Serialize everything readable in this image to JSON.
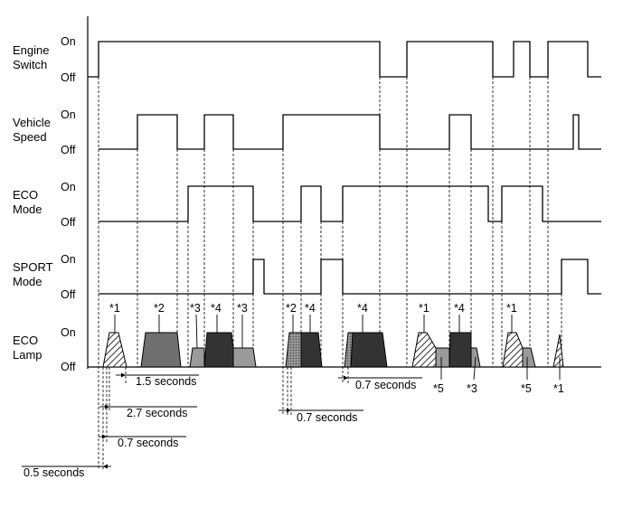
{
  "diagram": {
    "rows": [
      {
        "name": "Engine Switch",
        "lines": [
          "Engine",
          "Switch"
        ],
        "on": "On",
        "off": "Off"
      },
      {
        "name": "Vehicle Speed",
        "lines": [
          "Vehicle",
          "Speed"
        ],
        "on": "On",
        "off": "Off"
      },
      {
        "name": "ECO Mode",
        "lines": [
          "ECO",
          "Mode"
        ],
        "on": "On",
        "off": "Off"
      },
      {
        "name": "SPORT Mode",
        "lines": [
          "SPORT",
          "Mode"
        ],
        "on": "On",
        "off": "Off"
      },
      {
        "name": "ECO Lamp",
        "lines": [
          "ECO",
          "Lamp"
        ],
        "on": "On",
        "off": "Off"
      }
    ],
    "annotations_top": [
      "*1",
      "*2",
      "*3",
      "*4",
      "*3",
      "*2",
      "*4",
      "*4",
      "*1",
      "*4",
      "*1"
    ],
    "annotations_bottom": [
      "*5",
      "*3",
      "*5",
      "*1"
    ],
    "timings": {
      "t1": "1.5 seconds",
      "t2": "2.7 seconds",
      "t3": "0.7 seconds",
      "t4": "0.5 seconds",
      "t5": "0.7 seconds",
      "t6": "0.7 seconds"
    },
    "colors": {
      "line": "#000000",
      "dark_fill": "#333333",
      "medium_fill": "#707070",
      "light_fill": "#9a9a9a",
      "dotted_fill": "#8c8c8c"
    }
  }
}
